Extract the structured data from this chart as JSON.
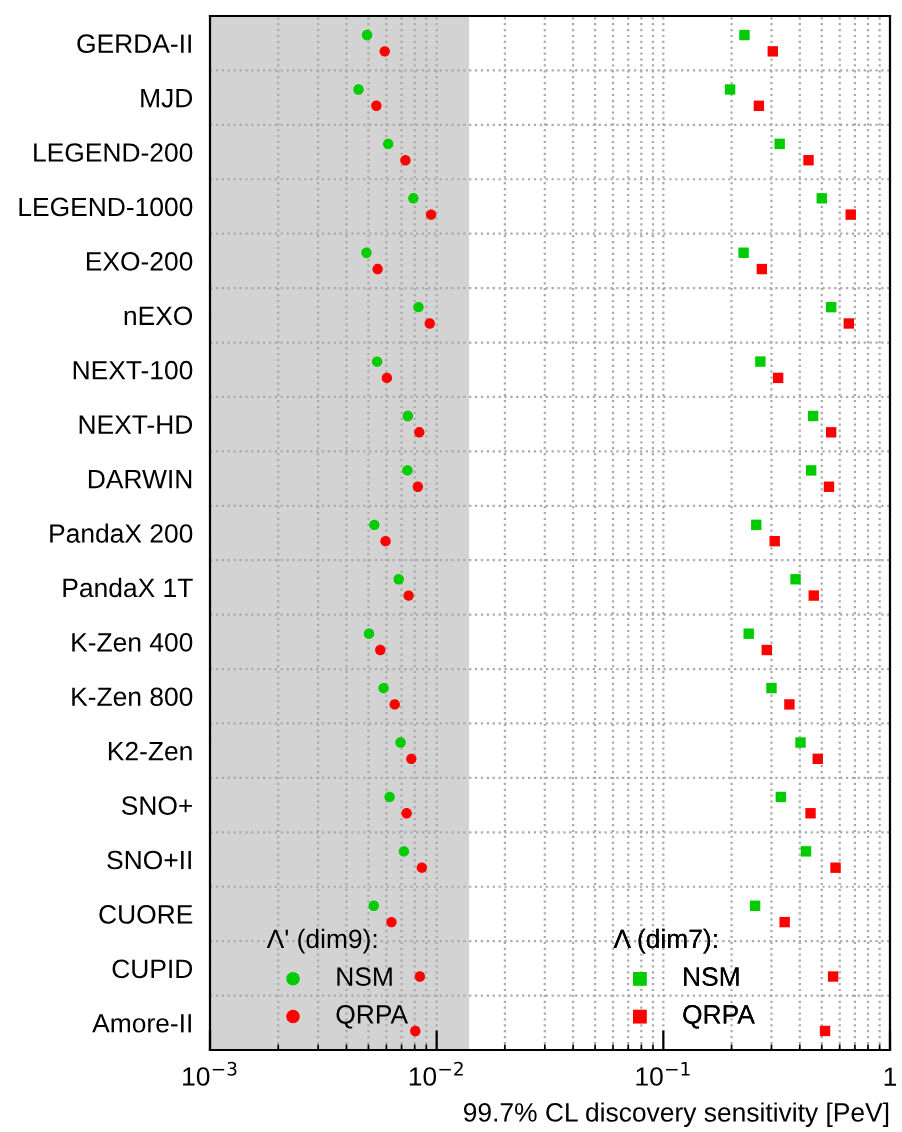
{
  "chart_data": {
    "type": "scatter",
    "orientation": "horizontal",
    "xlabel": "99.7% CL discovery sensitivity [PeV]",
    "categories": [
      "GERDA-II",
      "MJD",
      "LEGEND-200",
      "LEGEND-1000",
      "EXO-200",
      "nEXO",
      "NEXT-100",
      "NEXT-HD",
      "DARWIN",
      "PandaX 200",
      "PandaX 1T",
      "K-Zen 400",
      "K-Zen 800",
      "K2-Zen",
      "SNO+",
      "SNO+II",
      "CUORE",
      "CUPID",
      "Amore-II"
    ],
    "series": [
      {
        "name": "NSM",
        "color": "#00cc00",
        "marker": "circle",
        "values": [
          0.00493,
          0.00452,
          0.00611,
          0.00789,
          0.0049,
          0.00831,
          0.00546,
          0.00746,
          0.00743,
          0.00531,
          0.0068,
          0.00503,
          0.00583,
          0.00693,
          0.0062,
          0.00717,
          0.00528,
          null,
          null
        ]
      },
      {
        "name": "QRPA",
        "color": "#ff0000",
        "marker": "circle",
        "values": [
          0.0059,
          0.00542,
          0.00728,
          0.00945,
          0.00549,
          0.00932,
          0.00603,
          0.00838,
          0.00826,
          0.00595,
          0.00752,
          0.00564,
          0.00653,
          0.00773,
          0.00737,
          0.0086,
          0.00632,
          0.00843,
          0.00805
        ]
      },
      {
        "name": "NSM",
        "color": "#00cc00",
        "marker": "square",
        "values": [
          0.228,
          0.197,
          0.326,
          0.5,
          0.226,
          0.55,
          0.268,
          0.458,
          0.449,
          0.257,
          0.383,
          0.238,
          0.3,
          0.403,
          0.33,
          0.426,
          0.254,
          null,
          null
        ]
      },
      {
        "name": "QRPA",
        "color": "#ff0000",
        "marker": "square",
        "values": [
          0.304,
          0.264,
          0.437,
          0.671,
          0.272,
          0.658,
          0.321,
          0.55,
          0.538,
          0.31,
          0.461,
          0.286,
          0.36,
          0.48,
          0.446,
          0.575,
          0.343,
          0.561,
          0.517
        ]
      }
    ],
    "annotations": [
      "Λ' (dim9):",
      "Λ (dim7):"
    ],
    "log": "x",
    "xlim": [
      0.001,
      1
    ],
    "xticks": [
      {
        "value": 0.001,
        "label": "10$^{−3}$"
      },
      {
        "value": 0.01,
        "label": "10$^{−2}$"
      },
      {
        "value": 0.1,
        "label": "10$^{−1}$"
      },
      1
    ],
    "bands": [
      {
        "axis": "x",
        "from": 0.001,
        "to": 0.0139,
        "color": "#d3d3d3"
      }
    ],
    "grid": true,
    "legend": "bottom"
  }
}
